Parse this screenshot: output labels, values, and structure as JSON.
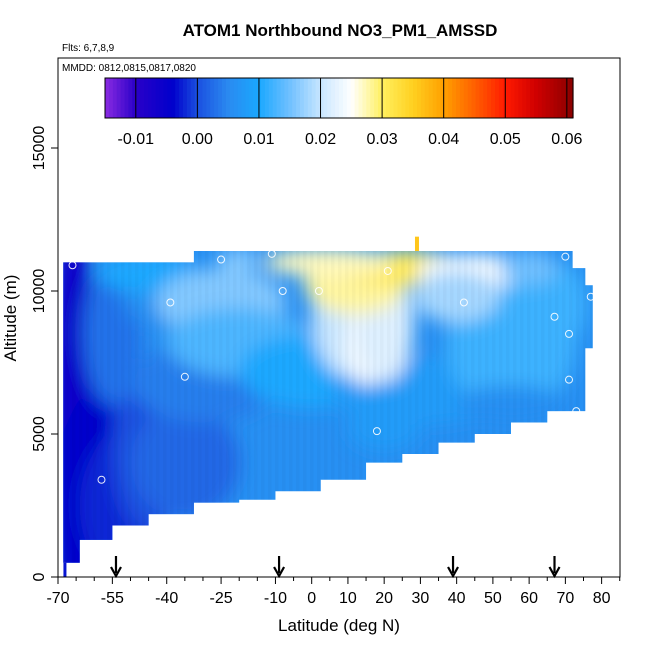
{
  "chart_data": {
    "type": "heatmap",
    "title": "ATOM1 Northbound NO3_PM1_AMSSD",
    "flights_note": "Flts: 6,7,8,9",
    "dates_note": "MMDD: 0812,0815,0817,0820",
    "xlabel": "Latitude (deg N)",
    "ylabel": "Altitude (m)",
    "xlim": [
      -70,
      85
    ],
    "ylim": [
      0,
      17500
    ],
    "x_tick_labels": [
      "-70",
      "-55",
      "-40",
      "-25",
      "-10",
      "0",
      "10",
      "20",
      "30",
      "40",
      "50",
      "60",
      "70",
      "80"
    ],
    "x_tick_values": [
      -70,
      -55,
      -40,
      -25,
      -10,
      0,
      10,
      20,
      30,
      40,
      50,
      60,
      70,
      80
    ],
    "x_minor_ticks": [
      -65,
      -60,
      -50,
      -45,
      -35,
      -30,
      -20,
      -15,
      -5,
      5,
      15,
      25,
      35,
      45,
      55,
      65,
      75,
      85
    ],
    "y_tick_labels": [
      "0",
      "5000",
      "10000",
      "15000"
    ],
    "y_tick_values": [
      0,
      5000,
      10000,
      15000
    ],
    "colorbar": {
      "range": [
        -0.015,
        0.061
      ],
      "tick_values": [
        -0.01,
        0.0,
        0.01,
        0.02,
        0.03,
        0.04,
        0.05,
        0.06
      ],
      "tick_labels": [
        "-0.01",
        "0.00",
        "0.01",
        "0.02",
        "0.03",
        "0.04",
        "0.05",
        "0.06"
      ],
      "color_stops": [
        {
          "v": -0.015,
          "c": "#8a2be2"
        },
        {
          "v": -0.01,
          "c": "#2a00c8"
        },
        {
          "v": -0.004,
          "c": "#0000cc"
        },
        {
          "v": 0.0,
          "c": "#1a4fe0"
        },
        {
          "v": 0.005,
          "c": "#2a8af0"
        },
        {
          "v": 0.01,
          "c": "#1aa8ff"
        },
        {
          "v": 0.015,
          "c": "#70c0ff"
        },
        {
          "v": 0.02,
          "c": "#c8e6ff"
        },
        {
          "v": 0.025,
          "c": "#ffffff"
        },
        {
          "v": 0.03,
          "c": "#fff060"
        },
        {
          "v": 0.035,
          "c": "#ffd020"
        },
        {
          "v": 0.04,
          "c": "#ffa000"
        },
        {
          "v": 0.045,
          "c": "#ff6000"
        },
        {
          "v": 0.05,
          "c": "#ff1a00"
        },
        {
          "v": 0.055,
          "c": "#d00000"
        },
        {
          "v": 0.061,
          "c": "#8a0000"
        }
      ]
    },
    "profiles": [
      {
        "lat": -68,
        "top": 11000,
        "bottom": 500
      },
      {
        "lat": -60,
        "top": 11000,
        "bottom": 1300
      },
      {
        "lat": -50,
        "top": 11000,
        "bottom": 1800
      },
      {
        "lat": -40,
        "top": 11000,
        "bottom": 2200
      },
      {
        "lat": -25,
        "top": 11400,
        "bottom": 2600
      },
      {
        "lat": -15,
        "top": 11400,
        "bottom": 2700
      },
      {
        "lat": -5,
        "top": 11400,
        "bottom": 3000
      },
      {
        "lat": 10,
        "top": 11400,
        "bottom": 3400
      },
      {
        "lat": 20,
        "top": 11400,
        "bottom": 4000
      },
      {
        "lat": 30,
        "top": 11400,
        "bottom": 4300
      },
      {
        "lat": 40,
        "top": 11400,
        "bottom": 4700
      },
      {
        "lat": 50,
        "top": 11400,
        "bottom": 5000
      },
      {
        "lat": 60,
        "top": 11400,
        "bottom": 5400
      },
      {
        "lat": 70,
        "top": 11400,
        "bottom": 5800
      },
      {
        "lat": 74,
        "top": 10800,
        "bottom": 5800
      },
      {
        "lat": 77,
        "top": 10200,
        "bottom": 8000
      }
    ],
    "sample_points": [
      {
        "lat": -66,
        "alt": 10900
      },
      {
        "lat": -25,
        "alt": 11100
      },
      {
        "lat": -11,
        "alt": 11300
      },
      {
        "lat": 21,
        "alt": 10700
      },
      {
        "lat": 70,
        "alt": 11200
      },
      {
        "lat": -39,
        "alt": 9600
      },
      {
        "lat": -8,
        "alt": 10000
      },
      {
        "lat": 2,
        "alt": 10000
      },
      {
        "lat": 42,
        "alt": 9600
      },
      {
        "lat": 77,
        "alt": 9800
      },
      {
        "lat": 67,
        "alt": 9100
      },
      {
        "lat": 71,
        "alt": 8500
      },
      {
        "lat": -35,
        "alt": 7000
      },
      {
        "lat": 71,
        "alt": 6900
      },
      {
        "lat": 73,
        "alt": 5800
      },
      {
        "lat": 18,
        "alt": 5100
      },
      {
        "lat": -58,
        "alt": 3400
      }
    ],
    "flight_markers_lat": [
      -54,
      -9,
      39,
      67
    ]
  }
}
